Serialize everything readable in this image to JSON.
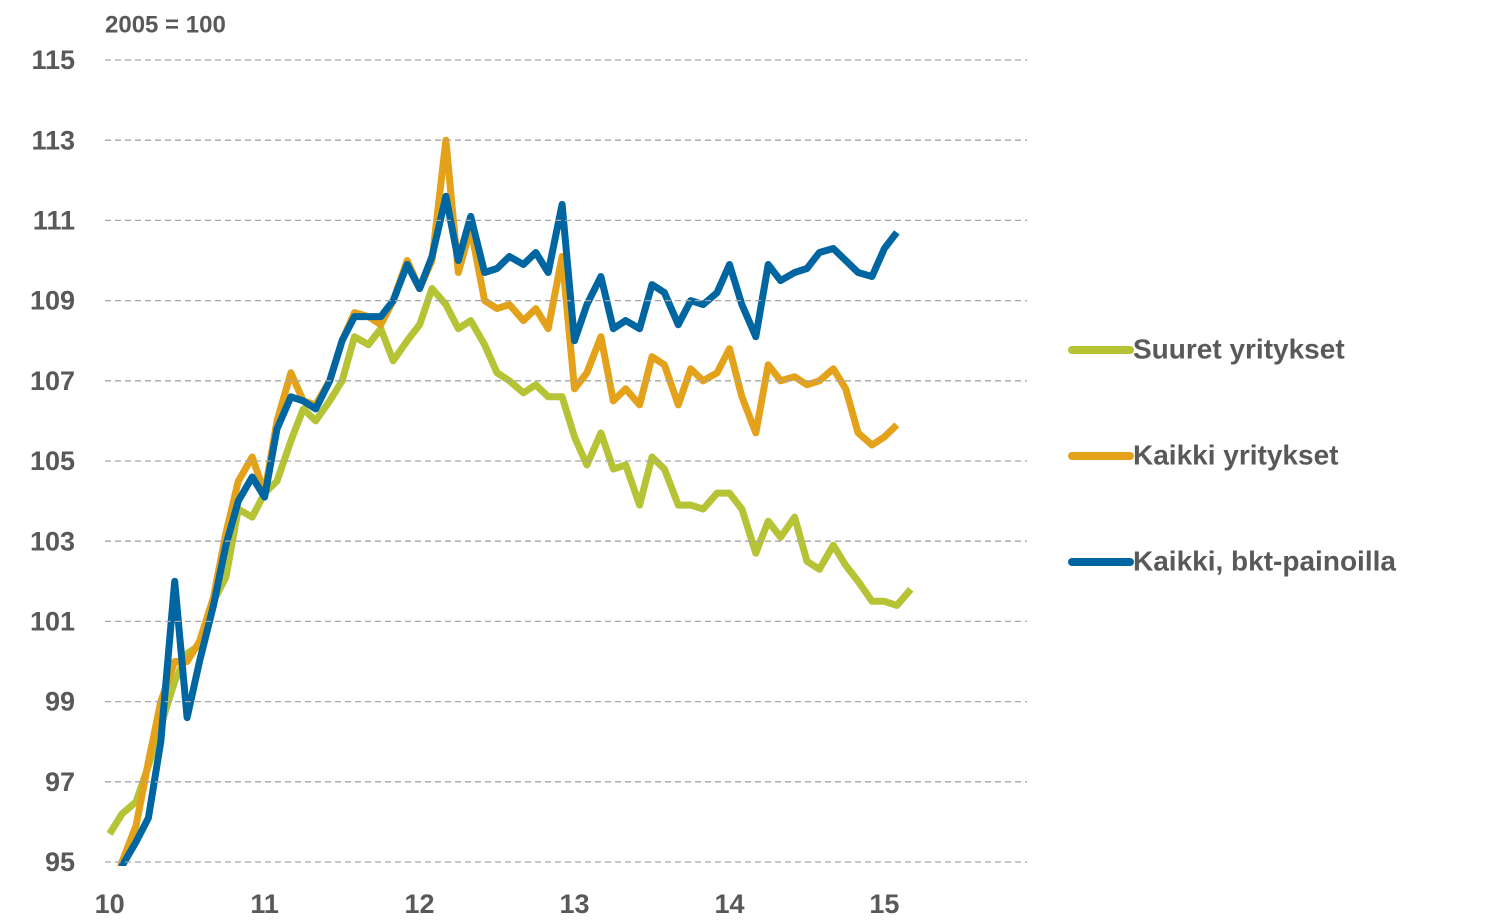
{
  "chart_data": {
    "type": "line",
    "annotation": "2005 = 100",
    "x": [
      10,
      10.08,
      10.17,
      10.25,
      10.33,
      10.42,
      10.5,
      10.58,
      10.67,
      10.75,
      10.83,
      10.92,
      11,
      11.08,
      11.17,
      11.25,
      11.33,
      11.42,
      11.5,
      11.58,
      11.67,
      11.75,
      11.83,
      11.92,
      12,
      12.08,
      12.17,
      12.25,
      12.33,
      12.42,
      12.5,
      12.58,
      12.67,
      12.75,
      12.83,
      12.92,
      13,
      13.08,
      13.17,
      13.25,
      13.33,
      13.42,
      13.5,
      13.58,
      13.67,
      13.75,
      13.83,
      13.92,
      14,
      14.08,
      14.17,
      14.25,
      14.33,
      14.42,
      14.5,
      14.58,
      14.67,
      14.75,
      14.83,
      14.92,
      15,
      15.08,
      15.17
    ],
    "series": [
      {
        "name": "Suuret yritykset",
        "color": "#b5c334",
        "values": [
          95.7,
          96.2,
          96.5,
          97.4,
          98.4,
          99.5,
          100.2,
          100.4,
          101.5,
          102.1,
          103.8,
          103.6,
          104.2,
          104.5,
          105.5,
          106.3,
          106.0,
          106.5,
          107.0,
          108.1,
          107.9,
          108.3,
          107.5,
          108.0,
          108.4,
          109.3,
          108.9,
          108.3,
          108.5,
          107.9,
          107.2,
          107.0,
          106.7,
          106.9,
          106.6,
          106.6,
          105.6,
          104.9,
          105.7,
          104.8,
          104.9,
          103.9,
          105.1,
          104.8,
          103.9,
          103.9,
          103.8,
          104.2,
          104.2,
          103.8,
          102.7,
          103.5,
          103.1,
          103.6,
          102.5,
          102.3,
          102.9,
          102.4,
          102.0,
          101.5,
          101.5,
          101.4,
          101.8
        ]
      },
      {
        "name": "Kaikki yritykset",
        "color": "#e3a21a",
        "values": [
          93.8,
          95.0,
          95.9,
          97.5,
          99.0,
          100.0,
          100.0,
          100.5,
          101.6,
          103.2,
          104.5,
          105.1,
          104.2,
          106.0,
          107.2,
          106.5,
          106.4,
          107.0,
          108.0,
          108.7,
          108.6,
          108.4,
          109.0,
          110.0,
          109.3,
          110.0,
          113.0,
          109.7,
          110.8,
          109.0,
          108.8,
          108.9,
          108.5,
          108.8,
          108.3,
          110.1,
          106.8,
          107.2,
          108.1,
          106.5,
          106.8,
          106.4,
          107.6,
          107.4,
          106.4,
          107.3,
          107.0,
          107.2,
          107.8,
          106.6,
          105.7,
          107.4,
          107.0,
          107.1,
          106.9,
          107.0,
          107.3,
          106.8,
          105.7,
          105.4,
          105.6,
          105.9,
          null
        ]
      },
      {
        "name": "Kaikki, bkt-painoilla",
        "color": "#0066a1",
        "values": [
          93.8,
          94.9,
          95.5,
          96.1,
          98.0,
          102.0,
          98.6,
          100.0,
          101.4,
          102.9,
          104.0,
          104.6,
          104.1,
          105.8,
          106.6,
          106.5,
          106.3,
          107.0,
          108.0,
          108.6,
          108.6,
          108.6,
          109.0,
          109.9,
          109.3,
          110.1,
          111.6,
          110.0,
          111.1,
          109.7,
          109.8,
          110.1,
          109.9,
          110.2,
          109.7,
          111.4,
          108.0,
          108.9,
          109.6,
          108.3,
          108.5,
          108.3,
          109.4,
          109.2,
          108.4,
          109.0,
          108.9,
          109.2,
          109.9,
          108.9,
          108.1,
          109.9,
          109.5,
          109.7,
          109.8,
          110.2,
          110.3,
          110.0,
          109.7,
          109.6,
          110.3,
          110.7,
          null
        ]
      }
    ],
    "xlim": [
      9.97,
      15.92
    ],
    "xticks": [
      10,
      11,
      12,
      13,
      14,
      15
    ],
    "ylim": [
      95,
      115
    ],
    "yticks": [
      95,
      97,
      99,
      101,
      103,
      105,
      107,
      109,
      111,
      113,
      115
    ],
    "grid": true,
    "legend": "right"
  }
}
